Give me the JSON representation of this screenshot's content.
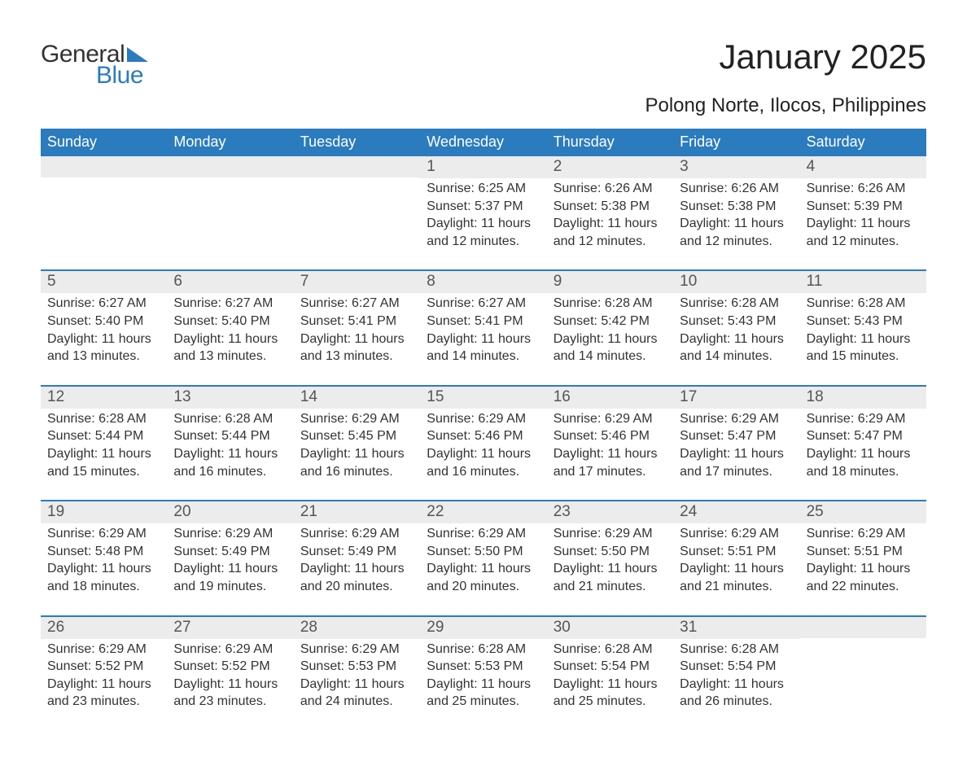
{
  "logo": {
    "text_general": "General",
    "text_blue": "Blue",
    "brand_color": "#2b7bbf"
  },
  "title": "January 2025",
  "location": "Polong Norte, Ilocos, Philippines",
  "colors": {
    "header_bg": "#2b7bbf",
    "header_text": "#ffffff",
    "daynum_bg": "#ececec",
    "body_text": "#333333",
    "page_bg": "#ffffff"
  },
  "typography": {
    "title_fontsize": 42,
    "location_fontsize": 24,
    "header_fontsize": 18,
    "daynum_fontsize": 19,
    "body_fontsize": 16
  },
  "layout": {
    "columns": 7,
    "rows": 5
  },
  "weekday_labels": [
    "Sunday",
    "Monday",
    "Tuesday",
    "Wednesday",
    "Thursday",
    "Friday",
    "Saturday"
  ],
  "labels": {
    "sunrise": "Sunrise",
    "sunset": "Sunset",
    "daylight": "Daylight"
  },
  "weeks": [
    [
      {
        "empty": true
      },
      {
        "empty": true
      },
      {
        "empty": true
      },
      {
        "day": "1",
        "sunrise": "6:25 AM",
        "sunset": "5:37 PM",
        "daylight": "11 hours and 12 minutes."
      },
      {
        "day": "2",
        "sunrise": "6:26 AM",
        "sunset": "5:38 PM",
        "daylight": "11 hours and 12 minutes."
      },
      {
        "day": "3",
        "sunrise": "6:26 AM",
        "sunset": "5:38 PM",
        "daylight": "11 hours and 12 minutes."
      },
      {
        "day": "4",
        "sunrise": "6:26 AM",
        "sunset": "5:39 PM",
        "daylight": "11 hours and 12 minutes."
      }
    ],
    [
      {
        "day": "5",
        "sunrise": "6:27 AM",
        "sunset": "5:40 PM",
        "daylight": "11 hours and 13 minutes."
      },
      {
        "day": "6",
        "sunrise": "6:27 AM",
        "sunset": "5:40 PM",
        "daylight": "11 hours and 13 minutes."
      },
      {
        "day": "7",
        "sunrise": "6:27 AM",
        "sunset": "5:41 PM",
        "daylight": "11 hours and 13 minutes."
      },
      {
        "day": "8",
        "sunrise": "6:27 AM",
        "sunset": "5:41 PM",
        "daylight": "11 hours and 14 minutes."
      },
      {
        "day": "9",
        "sunrise": "6:28 AM",
        "sunset": "5:42 PM",
        "daylight": "11 hours and 14 minutes."
      },
      {
        "day": "10",
        "sunrise": "6:28 AM",
        "sunset": "5:43 PM",
        "daylight": "11 hours and 14 minutes."
      },
      {
        "day": "11",
        "sunrise": "6:28 AM",
        "sunset": "5:43 PM",
        "daylight": "11 hours and 15 minutes."
      }
    ],
    [
      {
        "day": "12",
        "sunrise": "6:28 AM",
        "sunset": "5:44 PM",
        "daylight": "11 hours and 15 minutes."
      },
      {
        "day": "13",
        "sunrise": "6:28 AM",
        "sunset": "5:44 PM",
        "daylight": "11 hours and 16 minutes."
      },
      {
        "day": "14",
        "sunrise": "6:29 AM",
        "sunset": "5:45 PM",
        "daylight": "11 hours and 16 minutes."
      },
      {
        "day": "15",
        "sunrise": "6:29 AM",
        "sunset": "5:46 PM",
        "daylight": "11 hours and 16 minutes."
      },
      {
        "day": "16",
        "sunrise": "6:29 AM",
        "sunset": "5:46 PM",
        "daylight": "11 hours and 17 minutes."
      },
      {
        "day": "17",
        "sunrise": "6:29 AM",
        "sunset": "5:47 PM",
        "daylight": "11 hours and 17 minutes."
      },
      {
        "day": "18",
        "sunrise": "6:29 AM",
        "sunset": "5:47 PM",
        "daylight": "11 hours and 18 minutes."
      }
    ],
    [
      {
        "day": "19",
        "sunrise": "6:29 AM",
        "sunset": "5:48 PM",
        "daylight": "11 hours and 18 minutes."
      },
      {
        "day": "20",
        "sunrise": "6:29 AM",
        "sunset": "5:49 PM",
        "daylight": "11 hours and 19 minutes."
      },
      {
        "day": "21",
        "sunrise": "6:29 AM",
        "sunset": "5:49 PM",
        "daylight": "11 hours and 20 minutes."
      },
      {
        "day": "22",
        "sunrise": "6:29 AM",
        "sunset": "5:50 PM",
        "daylight": "11 hours and 20 minutes."
      },
      {
        "day": "23",
        "sunrise": "6:29 AM",
        "sunset": "5:50 PM",
        "daylight": "11 hours and 21 minutes."
      },
      {
        "day": "24",
        "sunrise": "6:29 AM",
        "sunset": "5:51 PM",
        "daylight": "11 hours and 21 minutes."
      },
      {
        "day": "25",
        "sunrise": "6:29 AM",
        "sunset": "5:51 PM",
        "daylight": "11 hours and 22 minutes."
      }
    ],
    [
      {
        "day": "26",
        "sunrise": "6:29 AM",
        "sunset": "5:52 PM",
        "daylight": "11 hours and 23 minutes."
      },
      {
        "day": "27",
        "sunrise": "6:29 AM",
        "sunset": "5:52 PM",
        "daylight": "11 hours and 23 minutes."
      },
      {
        "day": "28",
        "sunrise": "6:29 AM",
        "sunset": "5:53 PM",
        "daylight": "11 hours and 24 minutes."
      },
      {
        "day": "29",
        "sunrise": "6:28 AM",
        "sunset": "5:53 PM",
        "daylight": "11 hours and 25 minutes."
      },
      {
        "day": "30",
        "sunrise": "6:28 AM",
        "sunset": "5:54 PM",
        "daylight": "11 hours and 25 minutes."
      },
      {
        "day": "31",
        "sunrise": "6:28 AM",
        "sunset": "5:54 PM",
        "daylight": "11 hours and 26 minutes."
      },
      {
        "empty": true
      }
    ]
  ]
}
